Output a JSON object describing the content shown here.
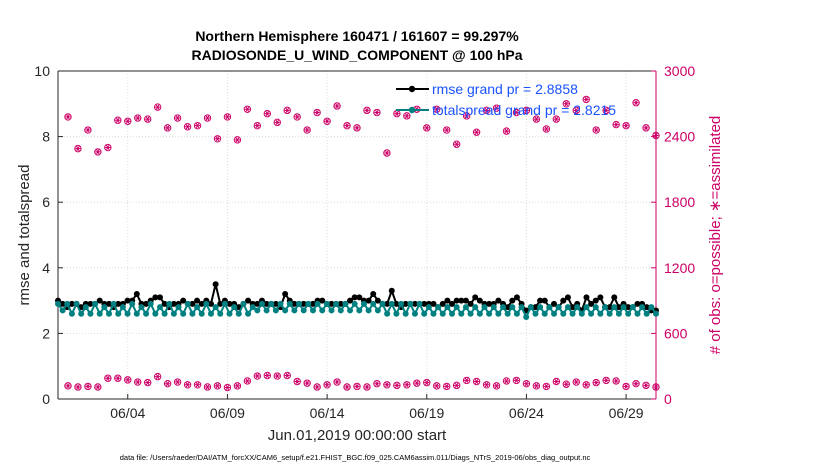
{
  "chart_data": {
    "type": "line",
    "title_line1": "Northern Hemisphere 160471 / 161607 = 99.297%",
    "title_line2": "RADIOSONDE_U_WIND_COMPONENT @ 100 hPa",
    "xlabel": "Jun.01,2019 00:00:00 start",
    "ylabel_left": "rmse and totalspread",
    "ylabel_right": "# of obs: o=possible; ∗=assimilated",
    "footnote": "data file: /Users/raeder/DAI/ATM_forcXX/CAM6_setup/f.e21.FHIST_BGC.f09_025.CAM6assim.011/Diags_NTrS_2019-06/obs_diag_output.nc",
    "xlim": [
      0.5,
      30.5
    ],
    "ylim_left": [
      0,
      10
    ],
    "ylim_right": [
      0,
      3000
    ],
    "yticks_left": [
      "0",
      "2",
      "4",
      "6",
      "8",
      "10"
    ],
    "yticks_right": [
      "0",
      "600",
      "1200",
      "1800",
      "2400",
      "3000"
    ],
    "xtick_values": [
      4,
      9,
      14,
      19,
      24,
      29
    ],
    "xtick_labels": [
      "06/04",
      "06/09",
      "06/14",
      "06/19",
      "06/24",
      "06/29"
    ],
    "legend_location": "top-right",
    "colors": {
      "rmse": "#000000",
      "spread": "#008080",
      "obs": "#cc0066",
      "axis": "#262626"
    },
    "series": [
      {
        "name": "rmse grand pr = 2.8858",
        "values": [
          3.0,
          2.9,
          2.8,
          2.9,
          2.9,
          2.8,
          2.9,
          2.9,
          2.9,
          3.0,
          2.9,
          2.9,
          2.8,
          2.9,
          2.9,
          3.0,
          3.0,
          3.2,
          2.9,
          2.9,
          3.0,
          3.1,
          3.1,
          2.9,
          2.8,
          2.9,
          2.9,
          3.0,
          2.9,
          2.9,
          3.0,
          2.9,
          3.0,
          2.9,
          3.5,
          2.9,
          3.0,
          2.9,
          2.9,
          2.8,
          2.9,
          3.0,
          2.9,
          2.9,
          3.0,
          2.9,
          2.9,
          2.9,
          2.8,
          3.2,
          3.0,
          2.9,
          2.9,
          2.9,
          2.9,
          2.9,
          3.0,
          3.0,
          2.9,
          2.9,
          2.9,
          2.9,
          2.9,
          3.0,
          3.1,
          3.1,
          3.0,
          3.0,
          3.2,
          3.0,
          2.9,
          2.9,
          3.3,
          2.9,
          2.8,
          2.9,
          2.9,
          2.9,
          2.9,
          2.9,
          2.9,
          2.9,
          2.8,
          2.9,
          3.0,
          2.9,
          3.0,
          3.0,
          3.0,
          2.9,
          3.1,
          3.0,
          2.9,
          2.9,
          2.9,
          3.0,
          2.9,
          2.8,
          3.0,
          3.1,
          2.9,
          2.7,
          2.8,
          2.8,
          3.0,
          3.0,
          2.8,
          2.9,
          2.8,
          3.0,
          3.1,
          2.8,
          2.9,
          2.7,
          3.1,
          2.9,
          3.0,
          3.1,
          2.8,
          2.8,
          3.1,
          2.8,
          2.9,
          2.8,
          2.8,
          2.9,
          2.9,
          2.8,
          2.7,
          2.7
        ]
      },
      {
        "name": "totalspread grand pr = 2.8215",
        "values": [
          2.9,
          2.7,
          2.9,
          2.6,
          2.9,
          2.6,
          2.8,
          2.6,
          2.9,
          2.6,
          2.8,
          2.6,
          2.9,
          2.6,
          2.8,
          2.6,
          2.9,
          2.6,
          2.8,
          2.6,
          2.9,
          2.6,
          2.8,
          2.6,
          2.9,
          2.6,
          2.8,
          2.6,
          2.9,
          2.6,
          2.8,
          2.6,
          2.9,
          2.6,
          2.8,
          2.6,
          2.9,
          2.6,
          2.8,
          2.6,
          2.9,
          2.6,
          2.8,
          2.7,
          2.9,
          2.7,
          2.9,
          2.7,
          2.9,
          2.7,
          2.9,
          2.7,
          2.9,
          2.7,
          2.9,
          2.7,
          2.9,
          2.7,
          2.9,
          2.7,
          2.9,
          2.7,
          2.9,
          2.7,
          2.9,
          2.7,
          2.9,
          2.7,
          2.9,
          2.7,
          2.9,
          2.6,
          2.9,
          2.6,
          2.9,
          2.6,
          2.9,
          2.6,
          2.9,
          2.6,
          2.8,
          2.6,
          2.8,
          2.6,
          2.8,
          2.6,
          2.8,
          2.6,
          2.8,
          2.6,
          2.8,
          2.6,
          2.8,
          2.6,
          2.8,
          2.6,
          2.8,
          2.6,
          2.8,
          2.6,
          2.8,
          2.5,
          2.8,
          2.6,
          2.8,
          2.6,
          2.8,
          2.6,
          2.8,
          2.6,
          2.8,
          2.6,
          2.8,
          2.6,
          2.8,
          2.6,
          2.8,
          2.6,
          2.8,
          2.6,
          2.8,
          2.6,
          2.8,
          2.6,
          2.8,
          2.6,
          2.8,
          2.6,
          2.8,
          2.6
        ]
      }
    ],
    "obs_x": [
      1,
      1.5,
      2,
      2.5,
      3,
      3.5,
      4,
      4.5,
      5,
      5.5,
      6,
      6.5,
      7,
      7.5,
      8,
      8.5,
      9,
      9.5,
      10,
      10.5,
      11,
      11.5,
      12,
      12.5,
      13,
      13.5,
      14,
      14.5,
      15,
      15.5,
      16,
      16.5,
      17,
      17.5,
      18,
      18.5,
      19,
      19.5,
      20,
      20.5,
      21,
      21.5,
      22,
      22.5,
      23,
      23.5,
      24,
      24.5,
      25,
      25.5,
      26,
      26.5,
      27,
      27.5,
      28,
      28.5,
      29,
      29.5,
      30,
      30.5
    ],
    "obs_high": [
      2580,
      2290,
      2460,
      2260,
      2300,
      2550,
      2540,
      2570,
      2560,
      2670,
      2480,
      2570,
      2490,
      2500,
      2570,
      2380,
      2580,
      2370,
      2650,
      2500,
      2610,
      2530,
      2640,
      2580,
      2460,
      2620,
      2540,
      2680,
      2500,
      2480,
      2640,
      2620,
      2250,
      2610,
      2590,
      2650,
      2480,
      2650,
      2460,
      2330,
      2590,
      2440,
      2640,
      2660,
      2450,
      2620,
      2640,
      2560,
      2470,
      2560,
      2700,
      2640,
      2740,
      2460,
      2640,
      2510,
      2500,
      2710,
      2480,
      2410
    ],
    "obs_low": [
      120,
      110,
      115,
      110,
      190,
      190,
      175,
      155,
      150,
      205,
      140,
      155,
      130,
      130,
      110,
      120,
      105,
      120,
      165,
      210,
      215,
      210,
      215,
      160,
      145,
      110,
      130,
      155,
      110,
      115,
      110,
      140,
      130,
      125,
      130,
      145,
      150,
      120,
      115,
      125,
      170,
      160,
      130,
      120,
      165,
      170,
      140,
      120,
      115,
      160,
      135,
      155,
      130,
      150,
      170,
      165,
      115,
      140,
      125,
      110
    ]
  }
}
